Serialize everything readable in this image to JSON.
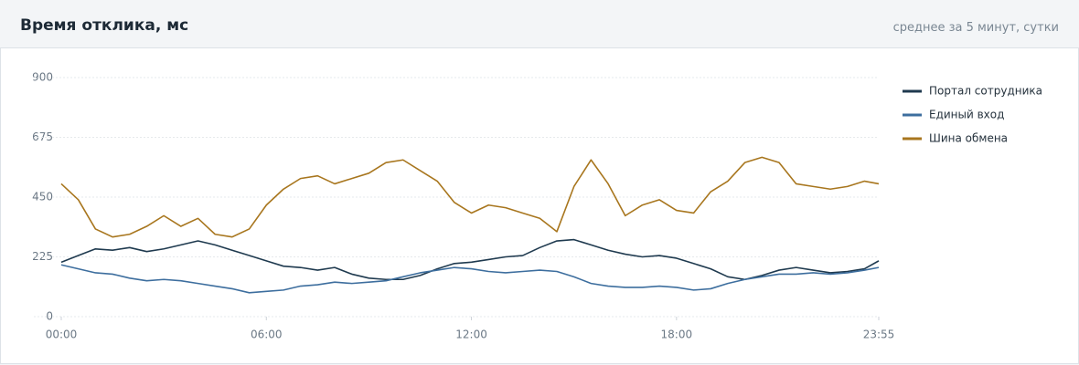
{
  "header": {
    "title": "Время отклика, мс",
    "subtitle": "среднее за 5 минут, сутки"
  },
  "chart_data": {
    "type": "line",
    "x": [
      0,
      30,
      60,
      90,
      120,
      150,
      180,
      210,
      240,
      270,
      300,
      330,
      360,
      390,
      420,
      450,
      480,
      510,
      540,
      570,
      600,
      630,
      660,
      690,
      720,
      750,
      780,
      810,
      840,
      870,
      900,
      930,
      960,
      990,
      1020,
      1050,
      1080,
      1110,
      1140,
      1170,
      1200,
      1230,
      1260,
      1290,
      1320,
      1350,
      1380,
      1410,
      1435
    ],
    "xlim": [
      0,
      1435
    ],
    "xticks": [
      {
        "value": 0,
        "label": "00:00"
      },
      {
        "value": 360,
        "label": "06:00"
      },
      {
        "value": 720,
        "label": "12:00"
      },
      {
        "value": 1080,
        "label": "18:00"
      },
      {
        "value": 1435,
        "label": "23:55"
      }
    ],
    "ylim": [
      0,
      900
    ],
    "yticks": [
      0,
      225,
      450,
      675,
      900
    ],
    "grid": true,
    "legend": "right",
    "series": [
      {
        "name": "Портал сотрудника",
        "color": "#1f3a4f",
        "values": [
          205,
          230,
          255,
          250,
          260,
          245,
          255,
          270,
          285,
          270,
          250,
          230,
          210,
          190,
          185,
          175,
          185,
          160,
          145,
          140,
          140,
          155,
          180,
          200,
          205,
          215,
          225,
          230,
          260,
          285,
          290,
          270,
          250,
          235,
          225,
          230,
          220,
          200,
          180,
          150,
          140,
          155,
          175,
          185,
          175,
          165,
          170,
          180,
          210
        ]
      },
      {
        "name": "Единый вход",
        "color": "#3d6e9e",
        "values": [
          195,
          180,
          165,
          160,
          145,
          135,
          140,
          135,
          125,
          115,
          105,
          90,
          95,
          100,
          115,
          120,
          130,
          125,
          130,
          135,
          150,
          165,
          175,
          185,
          180,
          170,
          165,
          170,
          175,
          170,
          150,
          125,
          115,
          110,
          110,
          115,
          110,
          100,
          105,
          125,
          140,
          150,
          160,
          160,
          165,
          160,
          165,
          175,
          185
        ]
      },
      {
        "name": "Шина обмена",
        "color": "#a8761e",
        "values": [
          500,
          440,
          330,
          300,
          310,
          340,
          380,
          340,
          370,
          310,
          300,
          330,
          420,
          480,
          520,
          530,
          500,
          520,
          540,
          580,
          590,
          550,
          510,
          430,
          390,
          420,
          410,
          390,
          370,
          320,
          490,
          590,
          500,
          380,
          420,
          440,
          400,
          390,
          470,
          510,
          580,
          600,
          580,
          500,
          490,
          480,
          490,
          510,
          500
        ]
      }
    ]
  }
}
